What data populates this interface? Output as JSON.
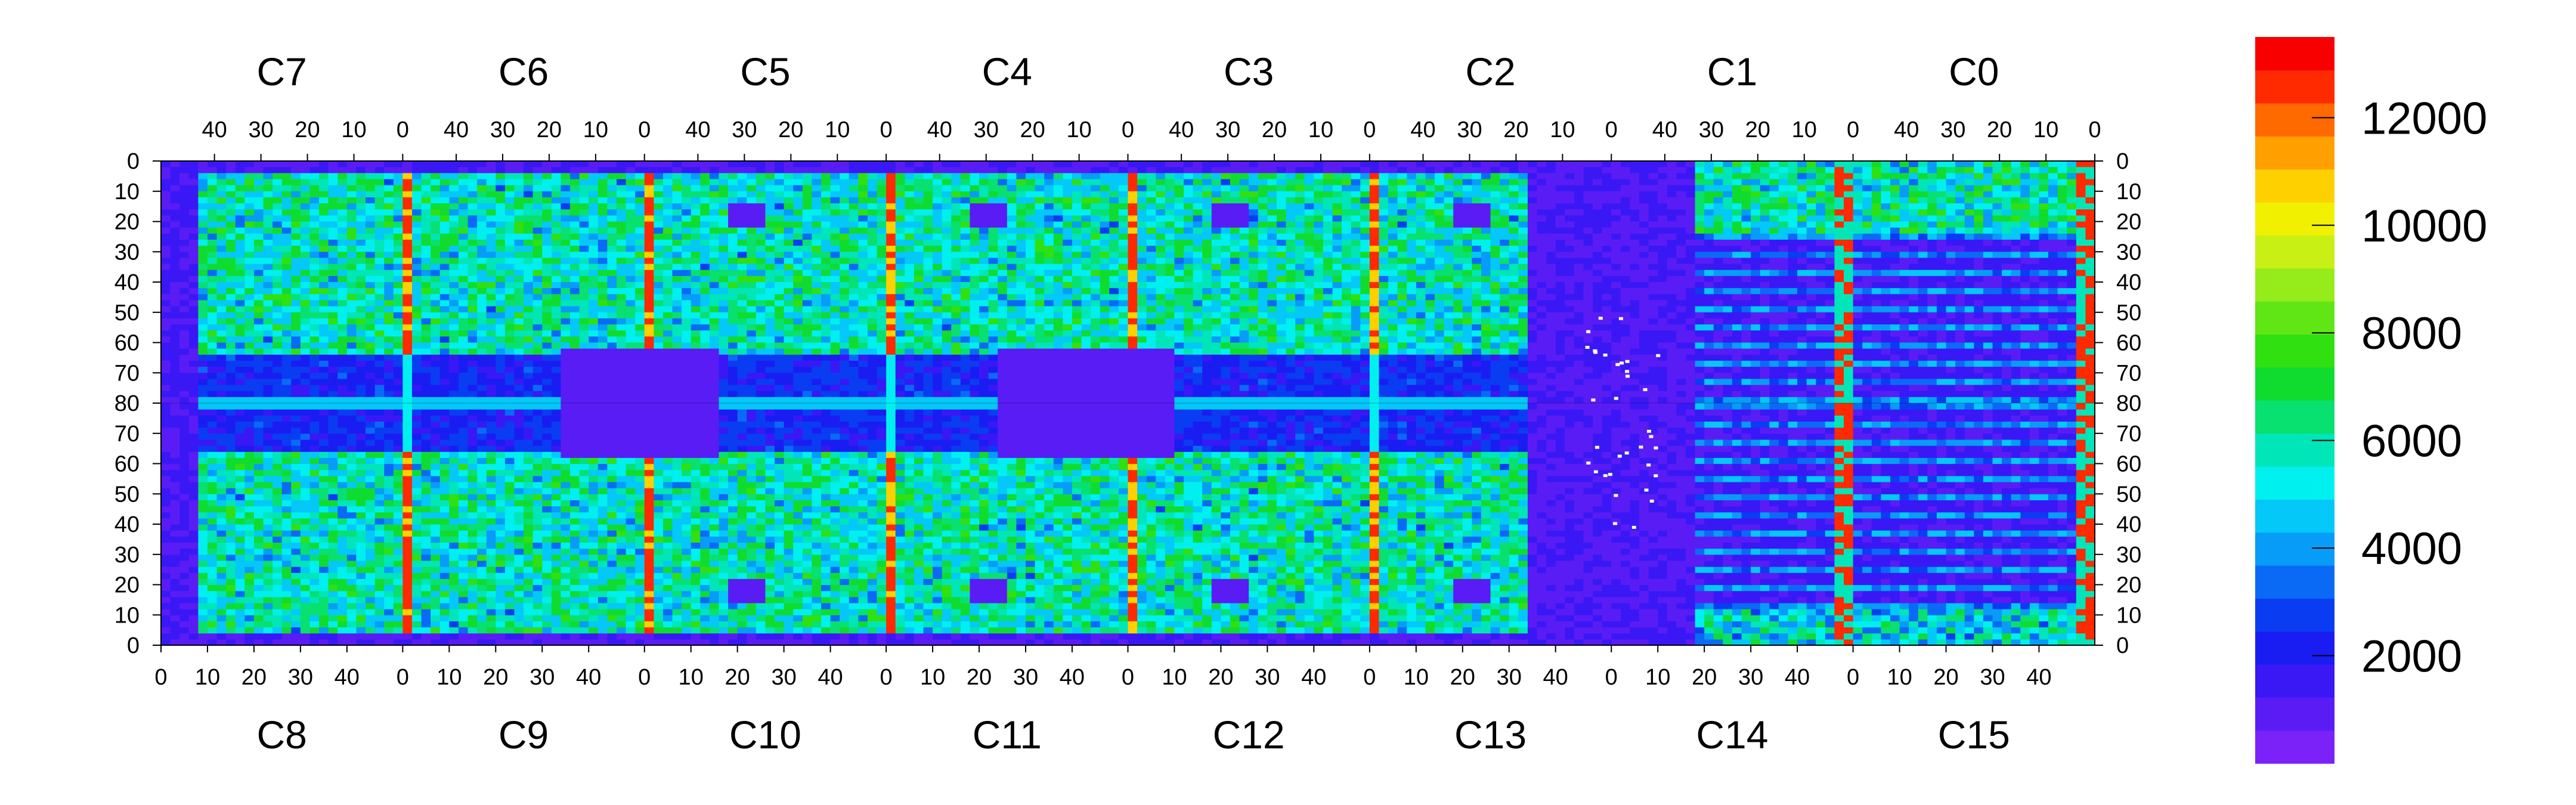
{
  "chart_data": {
    "type": "heatmap",
    "title": "",
    "xlabel": "",
    "ylabel": "",
    "top_chips": [
      "C7",
      "C6",
      "C5",
      "C4",
      "C3",
      "C2",
      "C1",
      "C0"
    ],
    "bottom_chips": [
      "C8",
      "C9",
      "C10",
      "C11",
      "C12",
      "C13",
      "C14",
      "C15"
    ],
    "top_x_ticks": [
      "40",
      "30",
      "20",
      "10",
      "0"
    ],
    "bottom_x_ticks": [
      "0",
      "10",
      "20",
      "30",
      "40"
    ],
    "top_x_tick_values": [
      40,
      30,
      20,
      10,
      0
    ],
    "bottom_x_tick_values": [
      0,
      10,
      20,
      30,
      40
    ],
    "chip_columns": 52,
    "y_ticks_top_half": [
      "0",
      "10",
      "20",
      "30",
      "40",
      "50",
      "60",
      "70",
      "80"
    ],
    "y_ticks_bottom_half": [
      "70",
      "60",
      "50",
      "40",
      "30",
      "20",
      "10",
      "0"
    ],
    "y_tick_values_top_half": [
      0,
      10,
      20,
      30,
      40,
      50,
      60,
      70,
      80
    ],
    "y_tick_values_bottom_half": [
      70,
      60,
      50,
      40,
      30,
      20,
      10,
      0
    ],
    "rows_per_half": 80,
    "colorbar": {
      "min": 0,
      "max": 13500,
      "ticks": [
        "2000",
        "4000",
        "6000",
        "8000",
        "10000",
        "12000"
      ],
      "tick_values": [
        2000,
        4000,
        6000,
        8000,
        10000,
        12000
      ],
      "levels": 20,
      "colors": [
        "#7a22f7",
        "#5a1cf5",
        "#3a18f5",
        "#1a1df2",
        "#0a3cf2",
        "#0a6af5",
        "#079cf7",
        "#04c8f8",
        "#00f0f0",
        "#00e6b8",
        "#08e070",
        "#10dc30",
        "#30e010",
        "#60e614",
        "#96eb1a",
        "#c8f014",
        "#f0f000",
        "#ffd000",
        "#ffa000",
        "#ff6a00",
        "#ff2a00",
        "#f80000"
      ]
    },
    "sample_values": {
      "background_low": 1200,
      "field_mid": 6000,
      "hot_column": 12600
    }
  }
}
